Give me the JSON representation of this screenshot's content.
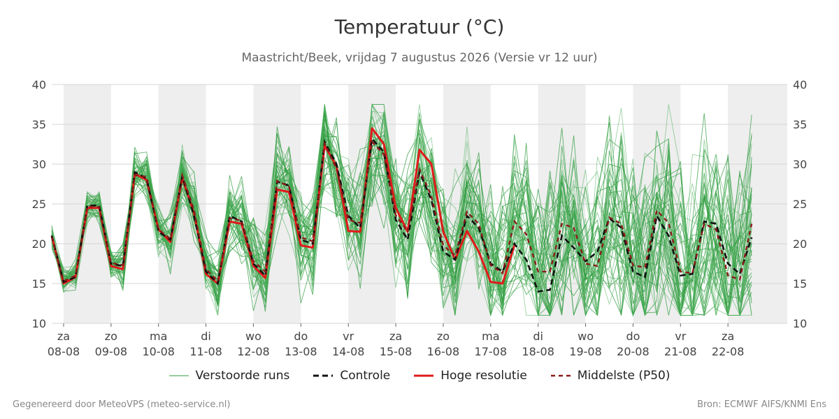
{
  "title": "Temperatuur (°C)",
  "subtitle": "Maastricht/Beek, vrijdag  7 augustus 2026 (Versie vr 12 uur)",
  "footer": {
    "left": "Gegenereerd door MeteoVPS (meteo-service.nl)",
    "right": "Bron: ECMWF AIFS/KNMI Ens"
  },
  "chart_data": {
    "type": "line",
    "ylim": [
      10,
      40
    ],
    "yticks": [
      10,
      15,
      20,
      25,
      30,
      35,
      40
    ],
    "grid": true,
    "legend_position": "bottom-center",
    "time_range_days": [
      -0.25,
      15.25
    ],
    "x_ticks": [
      {
        "day": "za",
        "date": "08-08"
      },
      {
        "day": "zo",
        "date": "09-08"
      },
      {
        "day": "ma",
        "date": "10-08"
      },
      {
        "day": "di",
        "date": "11-08"
      },
      {
        "day": "wo",
        "date": "12-08"
      },
      {
        "day": "do",
        "date": "13-08"
      },
      {
        "day": "vr",
        "date": "14-08"
      },
      {
        "day": "za",
        "date": "15-08"
      },
      {
        "day": "zo",
        "date": "16-08"
      },
      {
        "day": "ma",
        "date": "17-08"
      },
      {
        "day": "di",
        "date": "18-08"
      },
      {
        "day": "wo",
        "date": "19-08"
      },
      {
        "day": "do",
        "date": "20-08"
      },
      {
        "day": "vr",
        "date": "21-08"
      },
      {
        "day": "za",
        "date": "22-08"
      }
    ],
    "weekend_bands": [
      [
        0,
        1
      ],
      [
        2,
        3
      ],
      [
        4,
        5
      ],
      [
        6,
        7
      ],
      [
        8,
        9
      ],
      [
        10,
        11
      ],
      [
        12,
        13
      ],
      [
        14,
        15.25
      ]
    ],
    "x_step_days": 0.25,
    "series": [
      {
        "name": "Verstoorde runs",
        "color": "#2e9b3e",
        "style": "thin",
        "values": []
      },
      {
        "name": "Controle",
        "color": "#111111",
        "style": "dashed",
        "values": [
          21.0,
          15.2,
          15.8,
          24.8,
          24.8,
          17.5,
          17.2,
          29.0,
          28.2,
          21.5,
          20.5,
          28.5,
          23.5,
          16.5,
          15.0,
          23.5,
          22.8,
          17.5,
          16.0,
          27.8,
          27.3,
          20.5,
          20.0,
          32.8,
          30.0,
          23.5,
          22.0,
          33.2,
          31.5,
          23.0,
          20.5,
          29.0,
          25.5,
          19.0,
          18.0,
          23.5,
          22.0,
          17.5,
          16.5,
          20.0,
          18.0,
          14.0,
          14.2,
          21.0,
          19.5,
          17.8,
          19.0,
          23.2,
          22.0,
          16.5,
          15.8,
          23.5,
          21.0,
          16.0,
          16.2,
          22.8,
          22.5,
          17.5,
          16.2,
          20.8
        ]
      },
      {
        "name": "Hoge resolutie",
        "color": "#e01a1a",
        "style": "thick",
        "values": [
          21.0,
          15.0,
          15.8,
          24.5,
          24.5,
          17.2,
          16.8,
          28.8,
          28.0,
          21.8,
          20.2,
          28.3,
          23.8,
          16.2,
          15.0,
          22.8,
          22.5,
          17.2,
          15.7,
          26.8,
          26.5,
          19.8,
          19.5,
          32.3,
          29.8,
          21.6,
          21.5,
          34.5,
          32.5,
          24.5,
          21.5,
          31.8,
          30.0,
          21.5,
          18.0,
          21.6,
          19.0,
          15.2,
          15.0,
          19.8
        ]
      },
      {
        "name": "Middelste (P50)",
        "color": "#8b1a1a",
        "style": "dashed",
        "values": [
          20.8,
          15.3,
          16.0,
          24.7,
          24.6,
          17.6,
          17.3,
          28.6,
          28.4,
          21.8,
          20.6,
          28.6,
          24.2,
          16.8,
          15.3,
          23.2,
          22.9,
          17.8,
          16.5,
          27.9,
          27.2,
          20.8,
          20.3,
          32.6,
          29.4,
          23.0,
          22.6,
          32.8,
          31.2,
          23.6,
          21.5,
          29.3,
          26.0,
          19.8,
          18.5,
          24.0,
          22.5,
          17.3,
          16.3,
          22.8,
          21.2,
          16.5,
          16.5,
          22.5,
          22.0,
          17.5,
          17.2,
          23.3,
          22.5,
          17.3,
          17.0,
          24.2,
          22.6,
          16.5,
          16.3,
          22.5,
          21.8,
          16.0,
          15.5,
          22.5
        ]
      }
    ]
  }
}
